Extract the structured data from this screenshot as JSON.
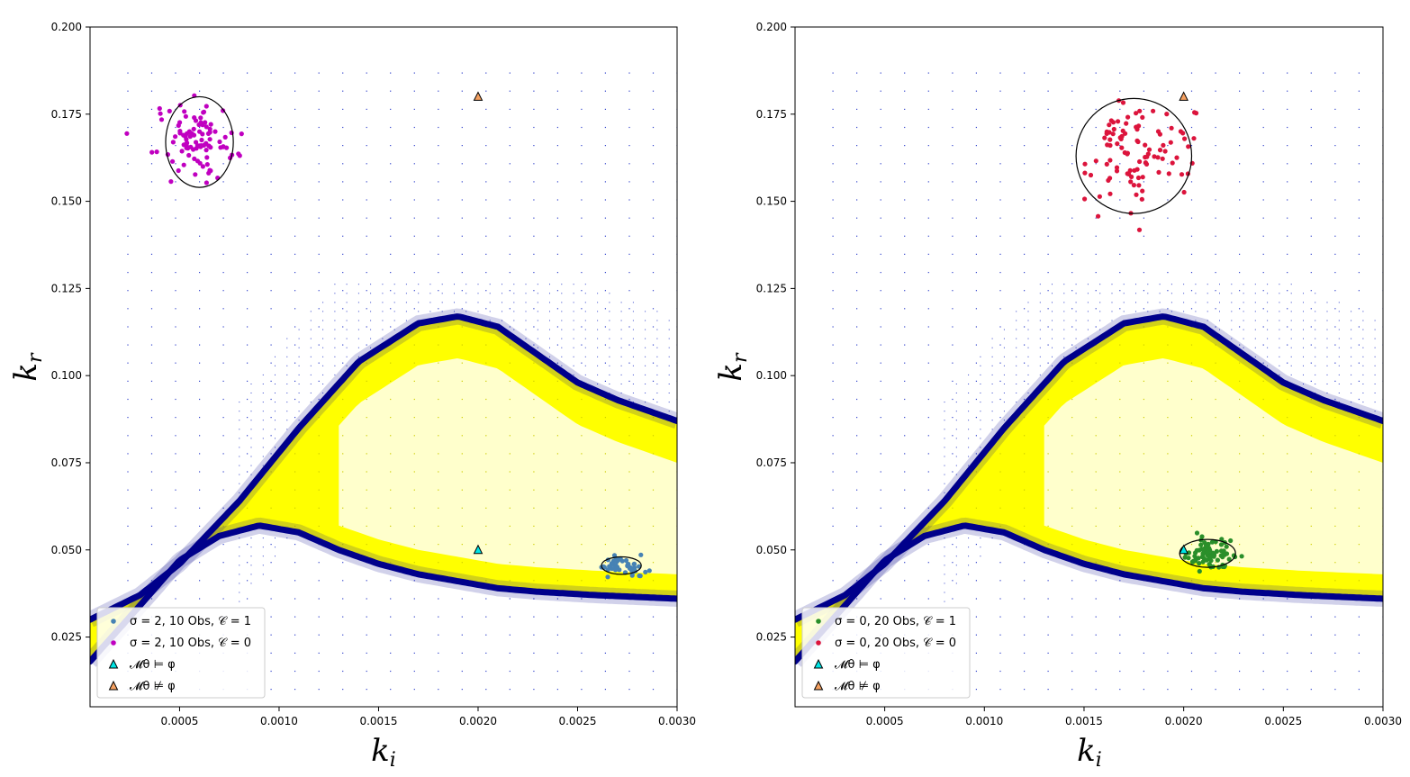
{
  "chart_data": [
    {
      "type": "scatter",
      "title": "",
      "xlabel": "k_i",
      "ylabel": "k_r",
      "xlim": [
        5e-05,
        0.003
      ],
      "ylim": [
        0.005,
        0.2
      ],
      "x_ticks": [
        0.0005,
        0.001,
        0.0015,
        0.002,
        0.0025,
        0.003
      ],
      "x_tick_labels": [
        "0.0005",
        "0.0010",
        "0.0015",
        "0.0020",
        "0.0025",
        "0.0030"
      ],
      "y_ticks": [
        0.025,
        0.05,
        0.075,
        0.1,
        0.125,
        0.15,
        0.175,
        0.2
      ],
      "y_tick_labels": [
        "0.025",
        "0.050",
        "0.075",
        "0.100",
        "0.125",
        "0.150",
        "0.175",
        "0.200"
      ],
      "background": "parameter-space grid: yellow = satisfying region, navy = boundary, blue dots = non-satisfying",
      "series": [
        {
          "name": "σ = 2, 10 Obs, C = 1",
          "label": "σ = 2, 10 Obs, 𝒞 = 1",
          "color": "#4682b4",
          "center": [
            0.00272,
            0.0455
          ],
          "spread": [
            6e-05,
            0.0015
          ],
          "n": 45,
          "ellipse": {
            "cx": 0.00272,
            "cy": 0.0455,
            "rx": 0.0001,
            "ry": 0.0025
          }
        },
        {
          "name": "σ = 2, 10 Obs, C = 0",
          "label": "σ = 2, 10 Obs, 𝒞 = 0",
          "color": "#c000c0",
          "center": [
            0.0006,
            0.167
          ],
          "spread": [
            9e-05,
            0.0055
          ],
          "n": 100,
          "ellipse": {
            "cx": 0.0006,
            "cy": 0.167,
            "rx": 0.00017,
            "ry": 0.013
          }
        },
        {
          "name": "M_θ ⊨ φ",
          "label": "𝓜θ ⊨ φ",
          "marker": "triangle",
          "color": "#00e5e5",
          "points": [
            [
              0.002,
              0.05
            ]
          ]
        },
        {
          "name": "M_θ ⊭ φ",
          "label": "𝓜θ ⊭ φ",
          "marker": "triangle",
          "color": "#f5a060",
          "points": [
            [
              0.002,
              0.18
            ]
          ]
        }
      ]
    },
    {
      "type": "scatter",
      "title": "",
      "xlabel": "k_i",
      "ylabel": "k_r",
      "xlim": [
        5e-05,
        0.003
      ],
      "ylim": [
        0.005,
        0.2
      ],
      "x_ticks": [
        0.0005,
        0.001,
        0.0015,
        0.002,
        0.0025,
        0.003
      ],
      "x_tick_labels": [
        "0.0005",
        "0.0010",
        "0.0015",
        "0.0020",
        "0.0025",
        "0.0030"
      ],
      "y_ticks": [
        0.025,
        0.05,
        0.075,
        0.1,
        0.125,
        0.15,
        0.175,
        0.2
      ],
      "y_tick_labels": [
        "0.025",
        "0.050",
        "0.075",
        "0.100",
        "0.125",
        "0.150",
        "0.175",
        "0.200"
      ],
      "background": "parameter-space grid: yellow = satisfying region, navy = boundary, blue dots = non-satisfying",
      "series": [
        {
          "name": "σ = 0, 20 Obs, C = 1",
          "label": "σ = 0, 20 Obs, 𝒞 = 1",
          "color": "#2a8f2a",
          "center": [
            0.00212,
            0.049
          ],
          "spread": [
            6e-05,
            0.002
          ],
          "n": 80,
          "ellipse": {
            "cx": 0.00212,
            "cy": 0.049,
            "rx": 0.00014,
            "ry": 0.004
          }
        },
        {
          "name": "σ = 0, 20 Obs, C = 0",
          "label": "σ = 0, 20 Obs, 𝒞 = 0",
          "color": "#dc143c",
          "center": [
            0.00175,
            0.163
          ],
          "spread": [
            0.00015,
            0.007
          ],
          "n": 100,
          "ellipse": {
            "cx": 0.00175,
            "cy": 0.163,
            "rx": 0.00029,
            "ry": 0.0165
          }
        },
        {
          "name": "M_θ ⊨ φ",
          "label": "𝓜θ ⊨ φ",
          "marker": "triangle",
          "color": "#00e5e5",
          "points": [
            [
              0.002,
              0.05
            ]
          ]
        },
        {
          "name": "M_θ ⊭ φ",
          "label": "𝓜θ ⊭ φ",
          "marker": "triangle",
          "color": "#f5a060",
          "points": [
            [
              0.002,
              0.18
            ]
          ]
        }
      ]
    }
  ],
  "colors": {
    "yellow": "#ffff00",
    "navy": "#00008b",
    "grid_dot": "#3344cc"
  }
}
